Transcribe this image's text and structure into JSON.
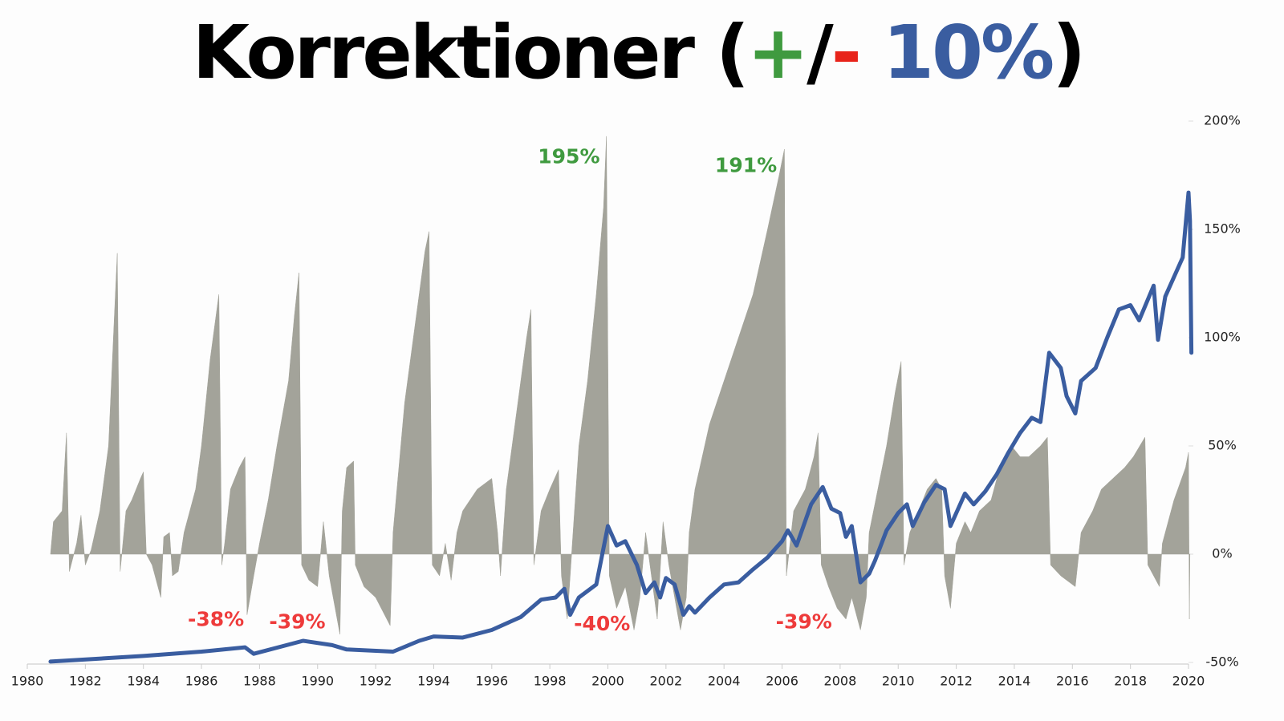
{
  "chart_data": {
    "type": "area",
    "title": [
      {
        "text": "Korrektioner (",
        "color": "#000000"
      },
      {
        "text": "+",
        "color": "#3f9a3f"
      },
      {
        "text": "/",
        "color": "#000000"
      },
      {
        "text": "-",
        "color": "#e8231a"
      },
      {
        "text": " 10%",
        "color": "#3a5da0"
      },
      {
        "text": ")",
        "color": "#000000"
      }
    ],
    "xlim": [
      1980,
      2020
    ],
    "xticks": [
      1980,
      1982,
      1984,
      1986,
      1988,
      1990,
      1992,
      1994,
      1996,
      1998,
      2000,
      2002,
      2004,
      2006,
      2008,
      2010,
      2012,
      2014,
      2016,
      2018,
      2020
    ],
    "ylim": [
      -50,
      200
    ],
    "yticks": [
      {
        "value": -50,
        "label": "-50%"
      },
      {
        "value": 0,
        "label": "0%"
      },
      {
        "value": 50,
        "label": "50%"
      },
      {
        "value": 100,
        "label": "100%"
      },
      {
        "value": 150,
        "label": "150%"
      },
      {
        "value": 200,
        "label": "200%"
      }
    ],
    "series": [
      {
        "type": "area",
        "color": "#a3a39a",
        "x": [
          1980.8,
          1980.9,
          1981.2,
          1981.35,
          1981.45,
          1981.7,
          1981.85,
          1982.0,
          1982.2,
          1982.5,
          1982.8,
          1983.0,
          1983.1,
          1983.2,
          1983.4,
          1983.6,
          1983.9,
          1984.0,
          1984.1,
          1984.3,
          1984.6,
          1984.7,
          1984.9,
          1985.0,
          1985.2,
          1985.4,
          1985.8,
          1986.0,
          1986.3,
          1986.6,
          1986.7,
          1986.8,
          1987.0,
          1987.3,
          1987.5,
          1987.57,
          1987.8,
          1988.0,
          1988.3,
          1988.6,
          1989.0,
          1989.2,
          1989.36,
          1989.45,
          1989.7,
          1990.0,
          1990.2,
          1990.4,
          1990.77,
          1990.85,
          1991.0,
          1991.24,
          1991.3,
          1991.6,
          1992.0,
          1992.5,
          1992.6,
          1992.8,
          1993.0,
          1993.4,
          1993.7,
          1993.84,
          1993.95,
          1994.2,
          1994.4,
          1994.6,
          1994.8,
          1995.0,
          1995.5,
          1996.0,
          1996.2,
          1996.3,
          1996.5,
          1996.8,
          1997.0,
          1997.2,
          1997.35,
          1997.45,
          1997.7,
          1998.0,
          1998.3,
          1998.4,
          1998.6,
          1998.8,
          1999.0,
          1999.3,
          1999.6,
          1999.85,
          1999.95,
          2000.05,
          2000.3,
          2000.6,
          2000.9,
          2001.1,
          2001.3,
          2001.5,
          2001.7,
          2001.9,
          2002.1,
          2002.3,
          2002.5,
          2002.7,
          2002.8,
          2003.0,
          2003.5,
          2004.0,
          2004.5,
          2005.0,
          2005.5,
          2005.9,
          2006.08,
          2006.15,
          2006.4,
          2006.8,
          2007.1,
          2007.24,
          2007.35,
          2007.6,
          2007.9,
          2008.2,
          2008.4,
          2008.7,
          2008.9,
          2009.0,
          2009.3,
          2009.6,
          2009.9,
          2010.1,
          2010.2,
          2010.4,
          2010.7,
          2011.0,
          2011.3,
          2011.5,
          2011.6,
          2011.8,
          2012.0,
          2012.3,
          2012.5,
          2012.8,
          2013.2,
          2013.5,
          2013.9,
          2014.2,
          2014.5,
          2014.9,
          2015.14,
          2015.25,
          2015.6,
          2016.1,
          2016.3,
          2016.7,
          2017.0,
          2017.4,
          2017.8,
          2018.1,
          2018.5,
          2018.6,
          2019.0,
          2019.1,
          2019.5,
          2019.9,
          2020.0,
          2020.03,
          2020.05
        ],
        "values": [
          0,
          15,
          20,
          56,
          -8,
          5,
          18,
          -5,
          2,
          20,
          50,
          110,
          139,
          -8,
          20,
          25,
          35,
          38,
          0,
          -5,
          -20,
          8,
          10,
          -10,
          -8,
          10,
          30,
          50,
          90,
          120,
          -5,
          5,
          30,
          40,
          45,
          -28,
          -10,
          5,
          25,
          50,
          80,
          110,
          130,
          -5,
          -12,
          -15,
          15,
          -10,
          -37,
          20,
          40,
          43,
          -5,
          -15,
          -20,
          -33,
          10,
          40,
          70,
          110,
          140,
          149,
          -5,
          -10,
          5,
          -12,
          10,
          20,
          30,
          35,
          10,
          -10,
          30,
          60,
          80,
          100,
          113,
          -5,
          20,
          30,
          39,
          -10,
          -30,
          10,
          50,
          80,
          120,
          160,
          193,
          -10,
          -25,
          -15,
          -35,
          -20,
          10,
          -10,
          -30,
          15,
          -5,
          -20,
          -35,
          -20,
          10,
          30,
          60,
          80,
          100,
          120,
          150,
          175,
          187,
          -10,
          20,
          30,
          45,
          56,
          -5,
          -15,
          -25,
          -30,
          -20,
          -35,
          -20,
          10,
          30,
          50,
          75,
          89,
          -5,
          10,
          20,
          30,
          35,
          30,
          -10,
          -25,
          5,
          15,
          10,
          20,
          25,
          40,
          50,
          45,
          45,
          50,
          54,
          -5,
          -10,
          -15,
          10,
          20,
          30,
          35,
          40,
          45,
          54,
          -5,
          -15,
          5,
          25,
          40,
          47,
          -30,
          0
        ]
      },
      {
        "type": "line",
        "color": "#3a5da0",
        "x": [
          1980.8,
          1984.0,
          1986.0,
          1987.5,
          1987.8,
          1989.5,
          1990.5,
          1991.0,
          1992.6,
          1993.5,
          1994.0,
          1995.0,
          1996.0,
          1997.0,
          1997.7,
          1998.2,
          1998.5,
          1998.7,
          1999.0,
          1999.6,
          2000.0,
          2000.3,
          2000.6,
          2001.0,
          2001.3,
          2001.6,
          2001.8,
          2002.0,
          2002.3,
          2002.6,
          2002.8,
          2003.0,
          2003.5,
          2004.0,
          2004.5,
          2005.0,
          2005.5,
          2006.0,
          2006.2,
          2006.5,
          2007.0,
          2007.4,
          2007.7,
          2008.0,
          2008.2,
          2008.4,
          2008.7,
          2009.0,
          2009.2,
          2009.6,
          2010.0,
          2010.3,
          2010.5,
          2010.9,
          2011.3,
          2011.6,
          2011.8,
          2012.0,
          2012.3,
          2012.6,
          2013.0,
          2013.4,
          2013.8,
          2014.2,
          2014.6,
          2014.9,
          2015.2,
          2015.6,
          2015.8,
          2016.1,
          2016.3,
          2016.8,
          2017.2,
          2017.6,
          2018.0,
          2018.3,
          2018.8,
          2018.95,
          2019.2,
          2019.5,
          2019.8,
          2020.0,
          2020.05,
          2020.1
        ],
        "values": [
          -49.6,
          -47,
          -45,
          -43,
          -46,
          -40,
          -42,
          -44,
          -45,
          -40,
          -38,
          -38.5,
          -35,
          -29,
          -21,
          -20,
          -16,
          -28,
          -20,
          -14,
          13,
          4,
          6,
          -5,
          -18,
          -13,
          -20,
          -11,
          -14,
          -28,
          -24,
          -27,
          -20,
          -14,
          -13,
          -7,
          -1.5,
          6,
          11,
          4,
          23,
          31,
          21,
          19,
          8,
          13,
          -13,
          -9,
          -3,
          11,
          19,
          23,
          13,
          24,
          32,
          30,
          13,
          19,
          28,
          23,
          29,
          37,
          47,
          56,
          63,
          61,
          93,
          86,
          73,
          65,
          80,
          86,
          100,
          113,
          115,
          108,
          124,
          99,
          119,
          128,
          137,
          167,
          154,
          93
        ]
      }
    ],
    "annotations": [
      {
        "text": "195%",
        "value": 195,
        "x": 2000,
        "color": "#3f9a3f"
      },
      {
        "text": "191%",
        "value": 191,
        "x": 2006.1,
        "color": "#3f9a3f"
      },
      {
        "text": "-38%",
        "value": -38,
        "x": 1986.5,
        "color": "#ee3b3b"
      },
      {
        "text": "-39%",
        "value": -39,
        "x": 1989.3,
        "color": "#ee3b3b"
      },
      {
        "text": "-40%",
        "value": -40,
        "x": 1999.8,
        "color": "#ee3b3b"
      },
      {
        "text": "-39%",
        "value": -39,
        "x": 2006.75,
        "color": "#ee3b3b"
      }
    ]
  }
}
